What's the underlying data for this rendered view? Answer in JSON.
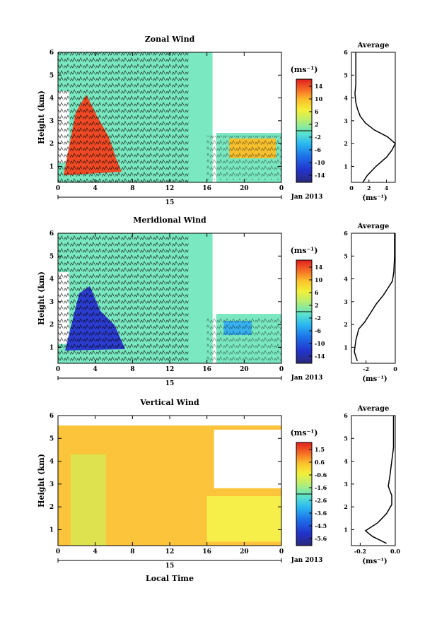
{
  "figure": {
    "date_label": "Jan 2013",
    "day_label": "15",
    "bottom_xlabel": "Local Time",
    "ylabel": "Height (km)",
    "units": "(ms⁻¹)",
    "average_title": "Average"
  },
  "chart_data": [
    {
      "type": "heatmap",
      "title": "Zonal Wind",
      "ylabel": "Height (km)",
      "x_ticks": [
        "0",
        "4",
        "8",
        "12",
        "16",
        "20",
        "0"
      ],
      "y_ticks": [
        "1",
        "2",
        "3",
        "4",
        "5",
        "6"
      ],
      "xlim": [
        0,
        24
      ],
      "ylim": [
        0.3,
        6
      ],
      "colorbar": {
        "label": "(ms⁻¹)",
        "ticks": [
          "14",
          "10",
          "6",
          "2",
          "-2",
          "-6",
          "-10",
          "-14"
        ],
        "range": [
          -16,
          16
        ]
      },
      "average": {
        "title": "Average",
        "xlabel": "(ms⁻¹)",
        "x_ticks": [
          "0",
          "2",
          "4"
        ],
        "xlim": [
          0,
          5
        ],
        "profile": [
          [
            1.3,
            0.3
          ],
          [
            1.8,
            0.6
          ],
          [
            2.8,
            1.0
          ],
          [
            4.0,
            1.4
          ],
          [
            4.6,
            1.7
          ],
          [
            5.0,
            2.0
          ],
          [
            4.1,
            2.3
          ],
          [
            2.6,
            2.6
          ],
          [
            1.6,
            2.9
          ],
          [
            1.0,
            3.2
          ],
          [
            0.7,
            3.5
          ],
          [
            0.5,
            3.8
          ],
          [
            0.4,
            4.2
          ],
          [
            0.5,
            4.6
          ],
          [
            0.5,
            5.2
          ],
          [
            0.5,
            6.0
          ]
        ]
      }
    },
    {
      "type": "heatmap",
      "title": "Meridional Wind",
      "ylabel": "Height (km)",
      "x_ticks": [
        "0",
        "4",
        "8",
        "12",
        "16",
        "20",
        "0"
      ],
      "y_ticks": [
        "1",
        "2",
        "3",
        "4",
        "5",
        "6"
      ],
      "xlim": [
        0,
        24
      ],
      "ylim": [
        0.3,
        6
      ],
      "colorbar": {
        "label": "(ms⁻¹)",
        "ticks": [
          "14",
          "10",
          "6",
          "2",
          "-2",
          "-6",
          "-10",
          "-14"
        ],
        "range": [
          -16,
          16
        ]
      },
      "average": {
        "title": "Average",
        "xlabel": "(ms⁻¹)",
        "x_ticks": [
          "-2",
          "0"
        ],
        "xlim": [
          -3,
          0
        ],
        "profile": [
          [
            -2.6,
            0.4
          ],
          [
            -2.8,
            0.8
          ],
          [
            -2.7,
            1.3
          ],
          [
            -2.5,
            1.8
          ],
          [
            -2.1,
            2.1
          ],
          [
            -1.7,
            2.5
          ],
          [
            -1.3,
            2.9
          ],
          [
            -0.8,
            3.3
          ],
          [
            -0.5,
            3.6
          ],
          [
            -0.2,
            3.9
          ],
          [
            -0.1,
            4.3
          ],
          [
            -0.05,
            5.0
          ],
          [
            -0.05,
            6.0
          ]
        ]
      }
    },
    {
      "type": "heatmap",
      "title": "Vertical Wind",
      "ylabel": "Height (km)",
      "x_ticks": [
        "0",
        "4",
        "8",
        "12",
        "16",
        "20",
        "0"
      ],
      "y_ticks": [
        "1",
        "2",
        "3",
        "4",
        "5",
        "6"
      ],
      "xlim": [
        0,
        24
      ],
      "ylim": [
        0.3,
        6
      ],
      "colorbar": {
        "label": "(ms⁻¹)",
        "ticks": [
          "1.5",
          "0.6",
          "-0.6",
          "-1.6",
          "-2.6",
          "-3.6",
          "-4.5",
          "-5.6"
        ],
        "range": [
          -6,
          2
        ]
      },
      "average": {
        "title": "Average",
        "xlabel": "(ms⁻¹)",
        "x_ticks": [
          "-0.2",
          "0.0"
        ],
        "xlim": [
          -0.25,
          0
        ],
        "profile": [
          [
            -0.05,
            0.4
          ],
          [
            -0.13,
            0.7
          ],
          [
            -0.17,
            0.95
          ],
          [
            -0.1,
            1.3
          ],
          [
            -0.05,
            1.7
          ],
          [
            -0.02,
            2.1
          ],
          [
            -0.02,
            2.5
          ],
          [
            -0.04,
            2.9
          ],
          [
            -0.03,
            3.4
          ],
          [
            -0.02,
            4.0
          ],
          [
            -0.01,
            4.6
          ],
          [
            -0.01,
            5.2
          ],
          [
            -0.01,
            6.0
          ]
        ]
      }
    }
  ]
}
